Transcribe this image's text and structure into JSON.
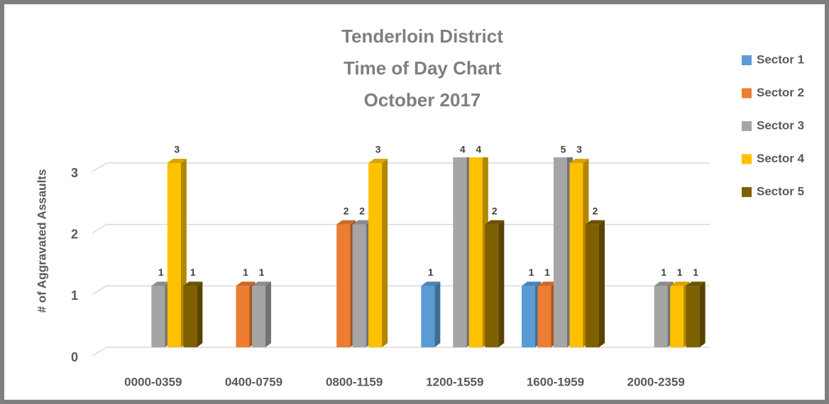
{
  "chart_data": {
    "type": "bar3d",
    "title": [
      "Tenderloin District",
      "Time of Day Chart",
      "October 2017"
    ],
    "y_label": "# of Aggravated Assaults",
    "categories": [
      "0000-0359",
      "0400-0759",
      "0800-1159",
      "1200-1559",
      "1600-1959",
      "2000-2359"
    ],
    "series": [
      {
        "name": "Sector 1",
        "color": "#5b9bd5",
        "values": [
          null,
          null,
          null,
          1,
          1,
          null
        ]
      },
      {
        "name": "Sector 2",
        "color": "#ed7d31",
        "values": [
          null,
          1,
          2,
          null,
          1,
          null
        ]
      },
      {
        "name": "Sector 3",
        "color": "#a5a5a5",
        "values": [
          1,
          1,
          2,
          4,
          5,
          1
        ]
      },
      {
        "name": "Sector 4",
        "color": "#ffc000",
        "values": [
          3,
          null,
          3,
          4,
          3,
          1
        ]
      },
      {
        "name": "Sector 5",
        "color": "#7f6000",
        "values": [
          1,
          null,
          null,
          2,
          2,
          1
        ]
      }
    ],
    "ylim": [
      0,
      3
    ],
    "yticks": [
      0,
      1,
      2,
      3
    ],
    "grid": true,
    "legend": "right"
  }
}
